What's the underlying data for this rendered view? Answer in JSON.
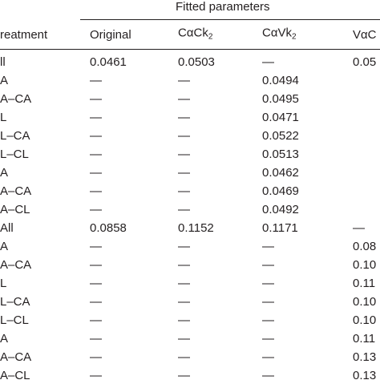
{
  "table": {
    "group_title": "Fitted parameters",
    "header": [
      {
        "text": "reatment"
      },
      {
        "text": "Original"
      },
      {
        "text": "CαCk",
        "sub": "2"
      },
      {
        "text": "CαVk",
        "sub": "2"
      },
      {
        "text": "VαC"
      }
    ],
    "rows": [
      [
        "ll",
        "0.0461",
        "0.0503",
        "—",
        "0.05"
      ],
      [
        "A",
        "—",
        "—",
        "0.0494"
      ],
      [
        "A–CA",
        "—",
        "—",
        "0.0495"
      ],
      [
        "L",
        "—",
        "—",
        "0.0471"
      ],
      [
        "L–CA",
        "—",
        "—",
        "0.0522"
      ],
      [
        "L–CL",
        "—",
        "—",
        "0.0513"
      ],
      [
        "A",
        "—",
        "—",
        "0.0462"
      ],
      [
        "A–CA",
        "—",
        "—",
        "0.0469"
      ],
      [
        "A–CL",
        "—",
        "—",
        "0.0492"
      ],
      [
        "All",
        "0.0858",
        "0.1152",
        "0.1171",
        "—"
      ],
      [
        "A",
        "—",
        "—",
        "—",
        "0.08"
      ],
      [
        "A–CA",
        "—",
        "—",
        "—",
        "0.10"
      ],
      [
        "L",
        "—",
        "—",
        "—",
        "0.11"
      ],
      [
        "L–CA",
        "—",
        "—",
        "—",
        "0.10"
      ],
      [
        "L–CL",
        "—",
        "—",
        "—",
        "0.10"
      ],
      [
        "A",
        "—",
        "—",
        "—",
        "0.11"
      ],
      [
        "A–CA",
        "—",
        "—",
        "—",
        "0.13"
      ],
      [
        "A–CL",
        "—",
        "—",
        "—",
        "0.13"
      ]
    ]
  }
}
